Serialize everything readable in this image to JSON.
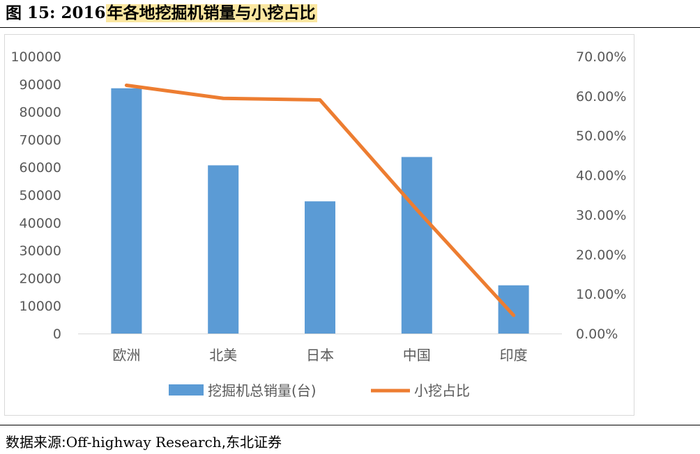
{
  "figure": {
    "prefix": "图 15:",
    "year": "2016",
    "title_highlight": "年各地挖掘机销量与小挖占比"
  },
  "source": {
    "label": "数据来源:",
    "text": "Off-highway Research",
    "suffix": ",东北证券"
  },
  "colors": {
    "bar": "#5b9bd5",
    "line": "#ed7d31",
    "axis_text": "#595959",
    "highlight": "#fbe7a1"
  },
  "chart_data": {
    "type": "bar",
    "categories": [
      "欧洲",
      "北美",
      "日本",
      "中国",
      "印度"
    ],
    "series": [
      {
        "name": "挖掘机总销量(台)",
        "type": "bar",
        "axis": "left",
        "values": [
          88500,
          60700,
          47700,
          63700,
          17400
        ]
      },
      {
        "name": "小挖占比",
        "type": "line",
        "axis": "right",
        "values": [
          0.627,
          0.594,
          0.59,
          0.313,
          0.046
        ]
      }
    ],
    "left_axis": {
      "ylim": [
        0,
        100000
      ],
      "ticks": [
        "0",
        "10000",
        "20000",
        "30000",
        "40000",
        "50000",
        "60000",
        "70000",
        "80000",
        "90000",
        "100000"
      ]
    },
    "right_axis": {
      "ylim": [
        0,
        0.7
      ],
      "ticks": [
        "0.00%",
        "10.00%",
        "20.00%",
        "30.00%",
        "40.00%",
        "50.00%",
        "60.00%",
        "70.00%"
      ]
    },
    "grid": false,
    "legend": "bottom"
  }
}
